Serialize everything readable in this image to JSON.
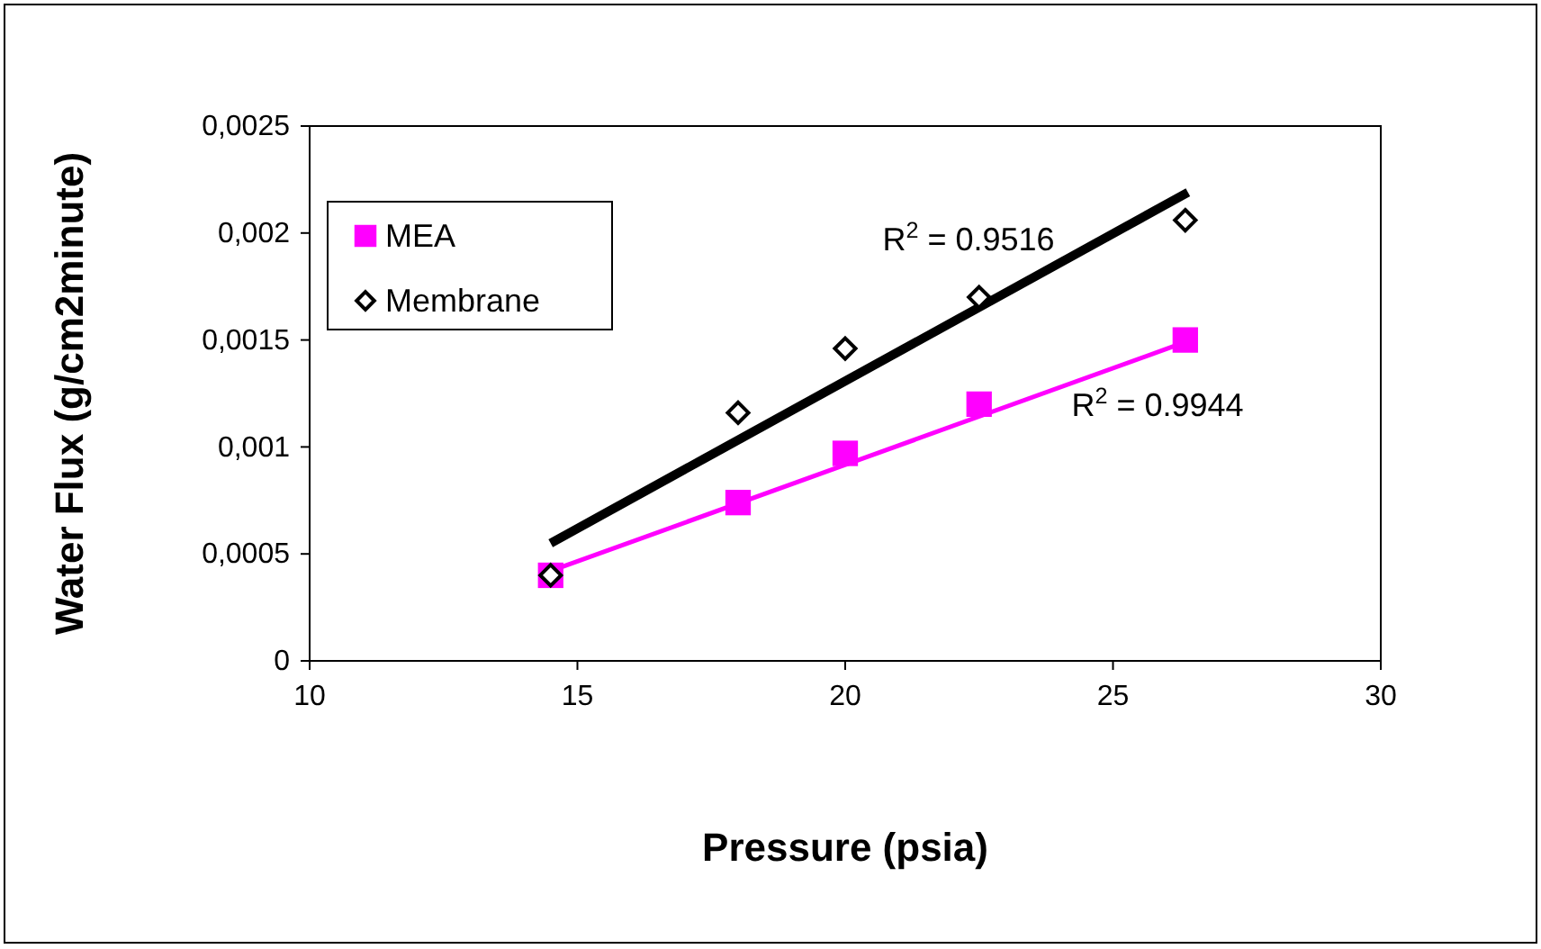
{
  "chart_data": {
    "type": "scatter",
    "xlabel": "Pressure (psia)",
    "ylabel": "Water Flux (g/cm2minute)",
    "xlim": [
      10,
      30
    ],
    "xticks": [
      10,
      15,
      20,
      25,
      30
    ],
    "ylim": [
      0,
      0.0025
    ],
    "yticks": [
      {
        "value": 0,
        "label": "0"
      },
      {
        "value": 0.0005,
        "label": "0,0005"
      },
      {
        "value": 0.001,
        "label": "0,001"
      },
      {
        "value": 0.0015,
        "label": "0,0015"
      },
      {
        "value": 0.002,
        "label": "0,002"
      },
      {
        "value": 0.0025,
        "label": "0,0025"
      }
    ],
    "grid": false,
    "legend": "top left",
    "series": [
      {
        "name": "MEA",
        "color": "#ff00ff",
        "marker": "square",
        "x": [
          14.5,
          18,
          20,
          22.5,
          26.35
        ],
        "values": [
          0.0004,
          0.00074,
          0.00097,
          0.0012,
          0.0015
        ]
      },
      {
        "name": "Membrane",
        "color": "#000000",
        "marker": "diamond",
        "x": [
          14.5,
          18,
          20,
          22.5,
          26.35
        ],
        "values": [
          0.0004,
          0.00116,
          0.00146,
          0.0017,
          0.00206
        ]
      },
      {
        "type": "line",
        "color": "#ff00ff",
        "marker": "none",
        "x": [
          14.5,
          26.35
        ],
        "values": [
          0.00042,
          0.00149
        ]
      },
      {
        "type": "line",
        "color": "#000000",
        "marker": "none",
        "x": [
          14.5,
          26.4
        ],
        "values": [
          0.00055,
          0.00219
        ]
      }
    ],
    "annotations": [
      "R$^{2}$ = 0.9516",
      "R$^{2}$ = 0.9944"
    ]
  }
}
